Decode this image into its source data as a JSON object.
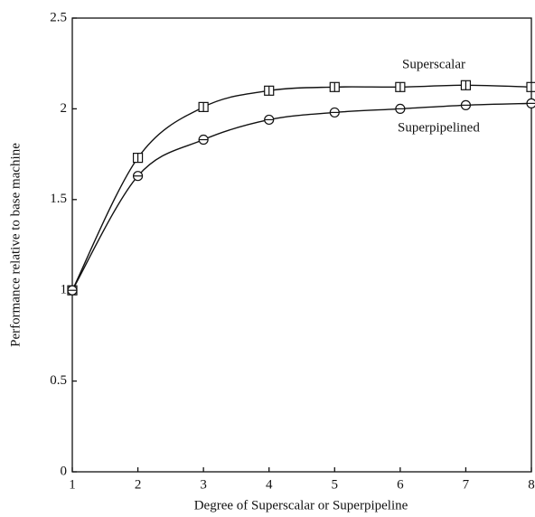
{
  "chart_data": {
    "type": "line",
    "xlabel": "Degree of Superscalar or Superpipeline",
    "ylabel": "Performance relative to base machine",
    "x": [
      1,
      2,
      3,
      4,
      5,
      6,
      7,
      8
    ],
    "series": [
      {
        "name": "Superscalar",
        "marker": "square",
        "color": "#111111",
        "values": [
          1.0,
          1.73,
          2.01,
          2.1,
          2.12,
          2.12,
          2.13,
          2.12
        ]
      },
      {
        "name": "Superpipelined",
        "marker": "circle",
        "color": "#111111",
        "values": [
          1.0,
          1.63,
          1.83,
          1.94,
          1.98,
          2.0,
          2.02,
          2.03
        ]
      }
    ],
    "xlim": [
      1,
      8
    ],
    "xticks": [
      1,
      2,
      3,
      4,
      5,
      6,
      7,
      8
    ],
    "ylim": [
      0,
      2.5
    ],
    "yticks": [
      0,
      0.5,
      1,
      1.5,
      2,
      2.5
    ],
    "grid": false
  }
}
